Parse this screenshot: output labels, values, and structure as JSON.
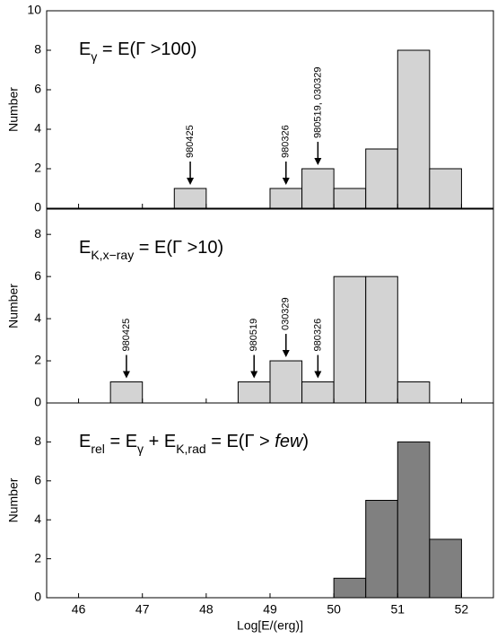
{
  "chart_data": [
    {
      "type": "histogram",
      "title": [
        {
          "text": "E"
        },
        {
          "text": "γ",
          "style": "sub"
        },
        {
          "text": " = E(Γ >100)"
        }
      ],
      "ylabel": "Number",
      "bins": [
        47.5,
        48,
        48.5,
        49,
        49.5,
        50,
        50.5,
        51,
        51.5,
        52
      ],
      "values": [
        1,
        0,
        0,
        1,
        2,
        1,
        3,
        8,
        2
      ],
      "color": "#d3d3d3",
      "xlim": [
        45.5,
        52.5
      ],
      "xticks": [
        46,
        47,
        48,
        49,
        50,
        51,
        52
      ],
      "ylim": [
        0,
        10
      ],
      "yticks": [
        0,
        2,
        4,
        6,
        8,
        10
      ],
      "annotations": [
        {
          "text": "980425",
          "x": 47.75
        },
        {
          "text": "980326",
          "x": 49.25
        },
        {
          "text": "980519, 030329",
          "x": 49.75
        }
      ]
    },
    {
      "type": "histogram",
      "title": [
        {
          "text": "E"
        },
        {
          "text": "K,x−ray",
          "style": "sub"
        },
        {
          "text": " = E(Γ >10)"
        }
      ],
      "ylabel": "Number",
      "bins": [
        46.5,
        47,
        47.5,
        48,
        48.5,
        49,
        49.5,
        50,
        50.5,
        51,
        51.5
      ],
      "values": [
        1,
        0,
        0,
        0,
        1,
        2,
        1,
        6,
        6,
        1
      ],
      "color": "#d3d3d3",
      "xlim": [
        45.5,
        52.5
      ],
      "xticks": [
        46,
        47,
        48,
        49,
        50,
        51,
        52
      ],
      "ylim": [
        0,
        9.2
      ],
      "yticks": [
        0,
        2,
        4,
        6,
        8
      ],
      "annotations": [
        {
          "text": "980425",
          "x": 46.75
        },
        {
          "text": "980519",
          "x": 48.75
        },
        {
          "text": "030329",
          "x": 49.25
        },
        {
          "text": "980326",
          "x": 49.75
        }
      ]
    },
    {
      "type": "histogram",
      "title": [
        {
          "text": "E"
        },
        {
          "text": "rel",
          "style": "sub"
        },
        {
          "text": " = E"
        },
        {
          "text": "γ",
          "style": "sub"
        },
        {
          "text": " + E"
        },
        {
          "text": "K,rad",
          "style": "sub"
        },
        {
          "text": " = E(Γ > "
        },
        {
          "text": "few",
          "style": "italic"
        },
        {
          "text": ")"
        }
      ],
      "ylabel": "Number",
      "xlabel": "Log[E/(erg)]",
      "bins": [
        50,
        50.5,
        51,
        51.5,
        52
      ],
      "values": [
        1,
        5,
        8,
        3
      ],
      "color": "#808080",
      "xlim": [
        45.5,
        52.5
      ],
      "xticks": [
        46,
        47,
        48,
        49,
        50,
        51,
        52
      ],
      "ylim": [
        0,
        10
      ],
      "yticks": [
        0,
        2,
        4,
        6,
        8
      ]
    }
  ]
}
